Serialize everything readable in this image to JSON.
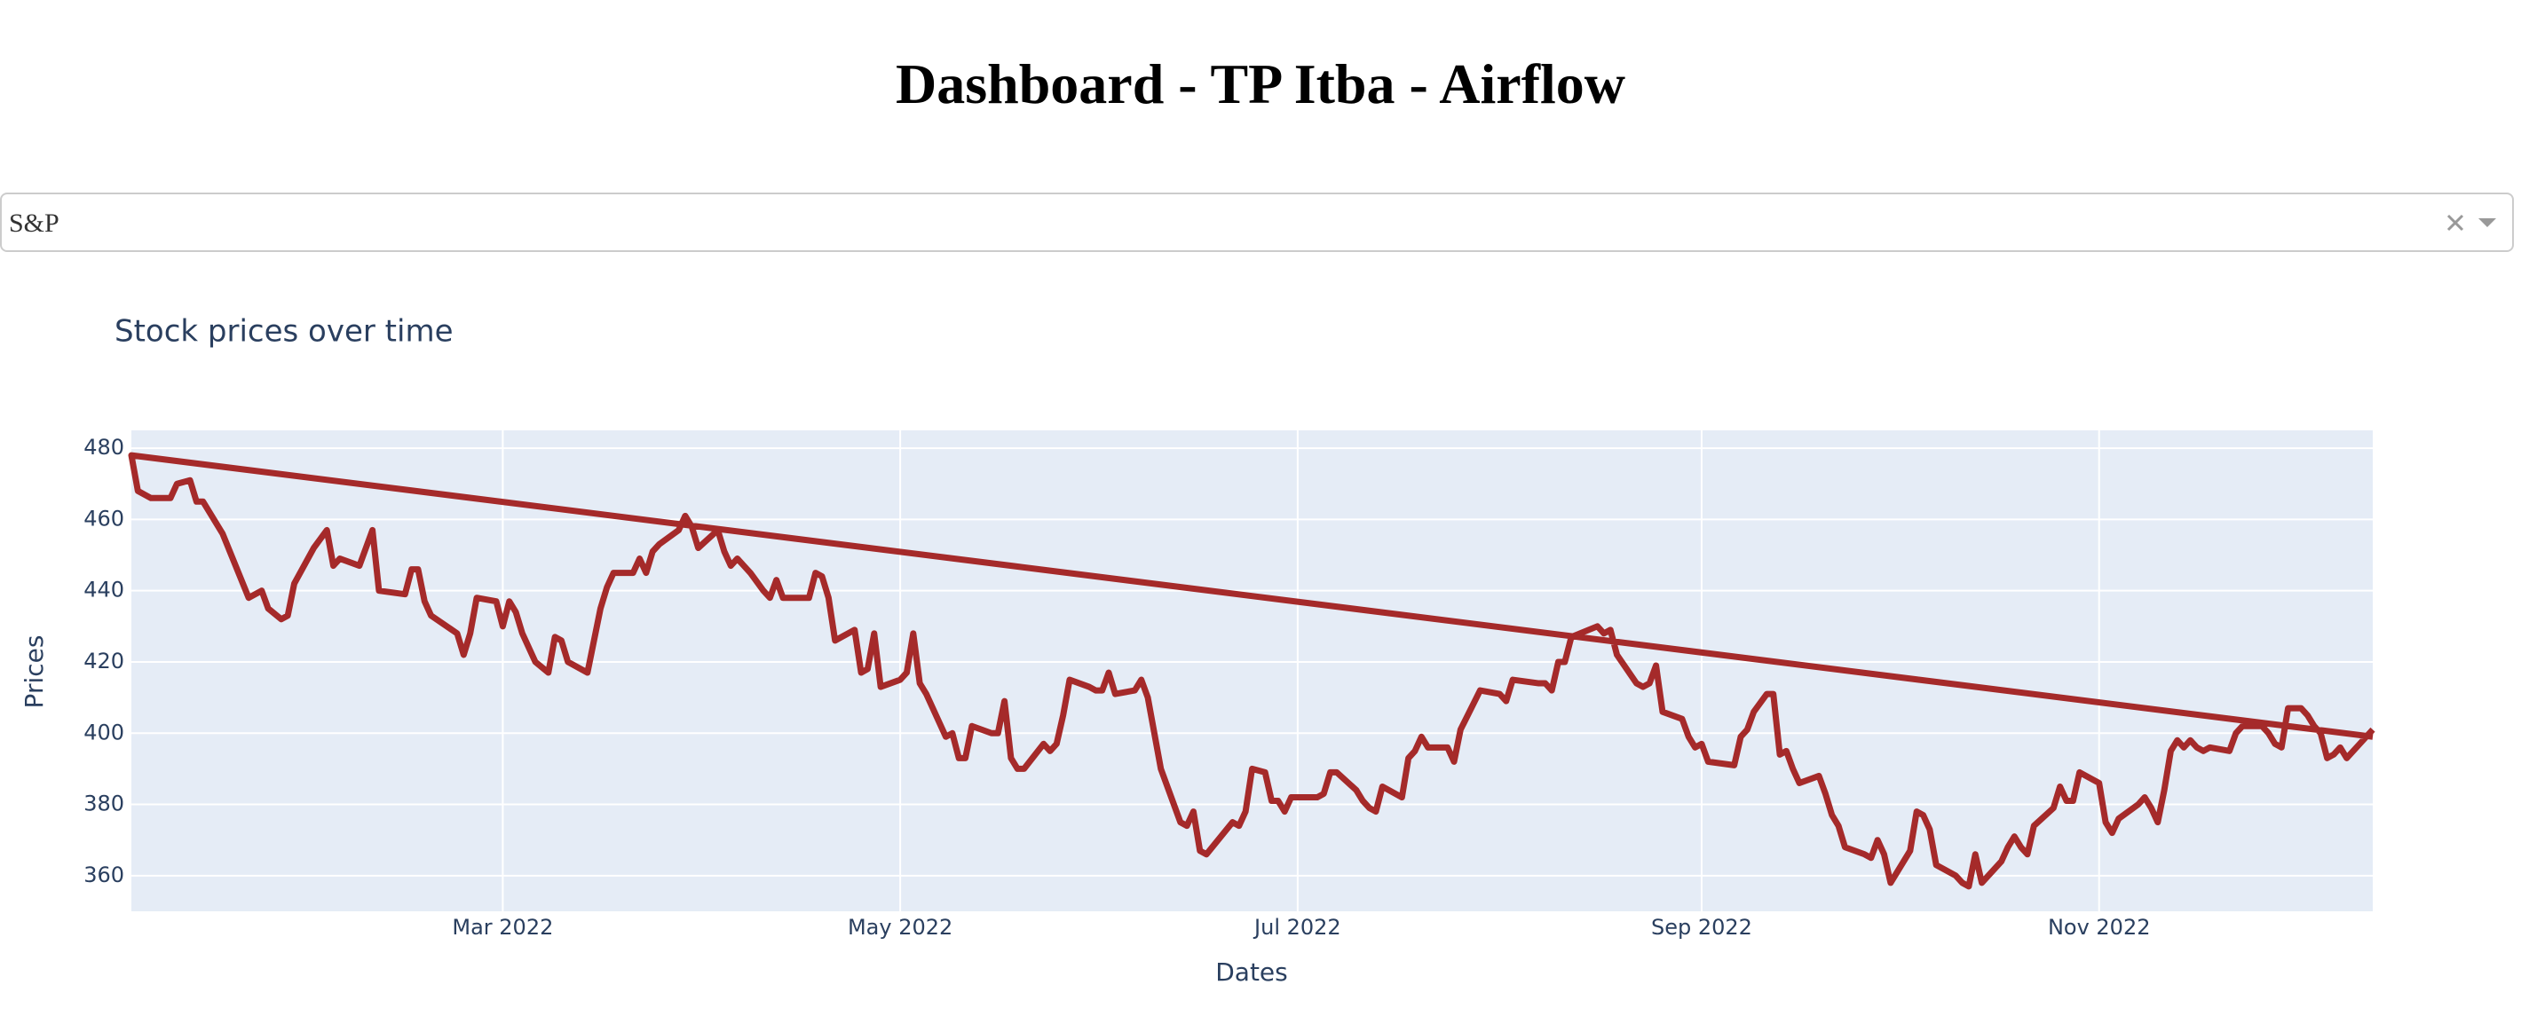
{
  "header": {
    "title": "Dashboard - TP Itba - Airflow"
  },
  "dropdown": {
    "value": "S&P"
  },
  "chart_data": {
    "type": "line",
    "title": "Stock prices over time",
    "x_label": "Dates",
    "y_label": "Prices",
    "x": [
      346,
      2,
      3,
      4,
      5,
      8,
      9,
      11,
      12,
      13,
      16,
      18,
      20,
      22,
      23,
      25,
      26,
      27,
      30,
      32,
      33,
      34,
      37,
      39,
      40,
      44,
      45,
      46,
      47,
      48,
      52,
      53,
      54,
      55,
      58,
      59,
      60,
      61,
      62,
      64,
      66,
      67,
      68,
      69,
      72,
      74,
      75,
      76,
      79,
      80,
      81,
      82,
      83,
      86,
      87,
      88,
      89,
      92,
      93,
      94,
      95,
      96,
      97,
      99,
      100,
      101,
      102,
      106,
      107,
      108,
      109,
      110,
      113,
      114,
      115,
      116,
      117,
      120,
      121,
      122,
      123,
      124,
      127,
      128,
      129,
      130,
      131,
      134,
      135,
      136,
      137,
      138,
      139,
      142,
      143,
      144,
      145,
      146,
      149,
      150,
      151,
      152,
      153,
      156,
      157,
      158,
      160,
      163,
      164,
      165,
      166,
      167,
      171,
      172,
      173,
      174,
      176,
      177,
      178,
      179,
      180,
      183,
      184,
      185,
      186,
      187,
      190,
      191,
      192,
      193,
      194,
      197,
      198,
      199,
      200,
      201,
      204,
      205,
      206,
      209,
      212,
      213,
      214,
      218,
      219,
      220,
      221,
      222,
      223,
      227,
      228,
      229,
      230,
      233,
      234,
      235,
      236,
      237,
      240,
      241,
      242,
      243,
      244,
      248,
      249,
      250,
      251,
      253,
      254,
      255,
      256,
      257,
      258,
      261,
      262,
      263,
      264,
      265,
      268,
      269,
      270,
      271,
      272,
      275,
      276,
      277,
      278,
      279,
      282,
      283,
      284,
      285,
      286,
      289,
      290,
      291,
      292,
      293,
      294,
      297,
      298,
      299,
      300,
      301,
      304,
      305,
      306,
      307,
      310,
      311,
      312,
      313,
      314,
      315,
      316,
      317,
      318,
      319,
      320,
      321,
      324,
      325,
      326,
      329,
      330,
      331,
      332,
      333,
      335,
      336,
      337,
      338,
      339,
      340,
      341,
      342,
      344,
      345,
      346
    ],
    "series": [
      {
        "color": "#a52a2a",
        "values": [
          399,
          478,
          468,
          467,
          466,
          466,
          470,
          471,
          465,
          465,
          456,
          447,
          438,
          440,
          435,
          432,
          433,
          442,
          452,
          457,
          447,
          449,
          447,
          457,
          440,
          439,
          446,
          446,
          437,
          433,
          428,
          422,
          428,
          438,
          437,
          430,
          437,
          434,
          428,
          420,
          417,
          427,
          426,
          420,
          417,
          435,
          441,
          445,
          445,
          449,
          445,
          451,
          453,
          457,
          461,
          458,
          452,
          457,
          451,
          447,
          449,
          447,
          445,
          440,
          438,
          443,
          438,
          438,
          445,
          444,
          438,
          426,
          429,
          417,
          418,
          428,
          413,
          415,
          417,
          428,
          414,
          411,
          399,
          400,
          393,
          393,
          402,
          400,
          400,
          409,
          393,
          390,
          390,
          397,
          395,
          397,
          405,
          415,
          413,
          412,
          412,
          417,
          411,
          412,
          415,
          410,
          390,
          375,
          374,
          378,
          367,
          366,
          375,
          374,
          378,
          390,
          389,
          381,
          381,
          378,
          382,
          382,
          382,
          383,
          389,
          389,
          384,
          381,
          379,
          378,
          385,
          382,
          393,
          395,
          399,
          396,
          396,
          392,
          401,
          412,
          411,
          409,
          415,
          414,
          414,
          412,
          420,
          420,
          427,
          430,
          428,
          429,
          422,
          414,
          413,
          414,
          419,
          406,
          404,
          399,
          396,
          397,
          392,
          391,
          399,
          401,
          406,
          411,
          411,
          394,
          395,
          390,
          386,
          388,
          383,
          377,
          374,
          368,
          366,
          365,
          370,
          366,
          358,
          367,
          378,
          377,
          373,
          363,
          360,
          358,
          357,
          366,
          358,
          364,
          368,
          371,
          368,
          366,
          374,
          379,
          385,
          381,
          381,
          389,
          386,
          375,
          372,
          376,
          380,
          382,
          379,
          375,
          384,
          395,
          398,
          396,
          398,
          396,
          395,
          396,
          395,
          400,
          402,
          402,
          400,
          397,
          396,
          407,
          407,
          405,
          402,
          400,
          393,
          394,
          396,
          393,
          397,
          399,
          401
        ]
      }
    ],
    "xlim": [
      2,
      346
    ],
    "ylim": [
      350,
      485
    ],
    "xticks": [
      {
        "value": 59,
        "label": "Mar 2022"
      },
      {
        "value": 120,
        "label": "May 2022"
      },
      {
        "value": 181,
        "label": "Jul 2022"
      },
      {
        "value": 243,
        "label": "Sep 2022"
      },
      {
        "value": 304,
        "label": "Nov 2022"
      }
    ],
    "yticks": [
      360,
      380,
      400,
      420,
      440,
      460,
      480
    ],
    "grid": true,
    "background": "#e5ecf6"
  }
}
